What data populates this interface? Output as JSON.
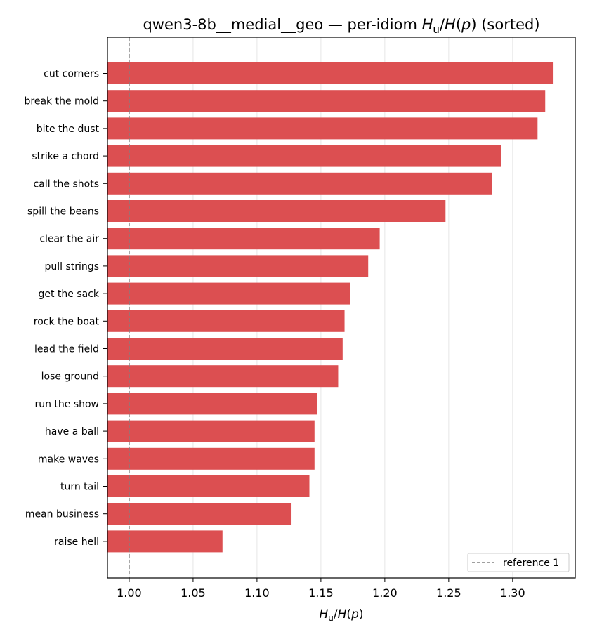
{
  "chart_data": {
    "type": "bar",
    "orientation": "horizontal",
    "title_prefix": "qwen3-8b__medial__geo — per-idiom ",
    "title_suffix": " (sorted)",
    "xlabel": "Hu/H(p)",
    "categories": [
      "cut corners",
      "break the mold",
      "bite the dust",
      "strike a chord",
      "call the shots",
      "spill the beans",
      "clear the air",
      "pull strings",
      "get the sack",
      "rock the boat",
      "lead the field",
      "lose ground",
      "run the show",
      "have a ball",
      "make waves",
      "turn tail",
      "mean business",
      "raise hell"
    ],
    "values": [
      1.332,
      1.3255,
      1.3195,
      1.291,
      1.284,
      1.2475,
      1.196,
      1.187,
      1.173,
      1.1685,
      1.167,
      1.1635,
      1.147,
      1.145,
      1.145,
      1.141,
      1.127,
      1.073
    ],
    "xlim": [
      0.983,
      1.349
    ],
    "xticks": [
      "1.00",
      "1.05",
      "1.10",
      "1.15",
      "1.20",
      "1.25",
      "1.30"
    ],
    "bar_color": "#dc4f51",
    "reference_line": {
      "x": 1.0,
      "label": "reference 1",
      "color": "#808080",
      "style": "dashed"
    },
    "grid": "x",
    "legend_position": "lower-right"
  }
}
